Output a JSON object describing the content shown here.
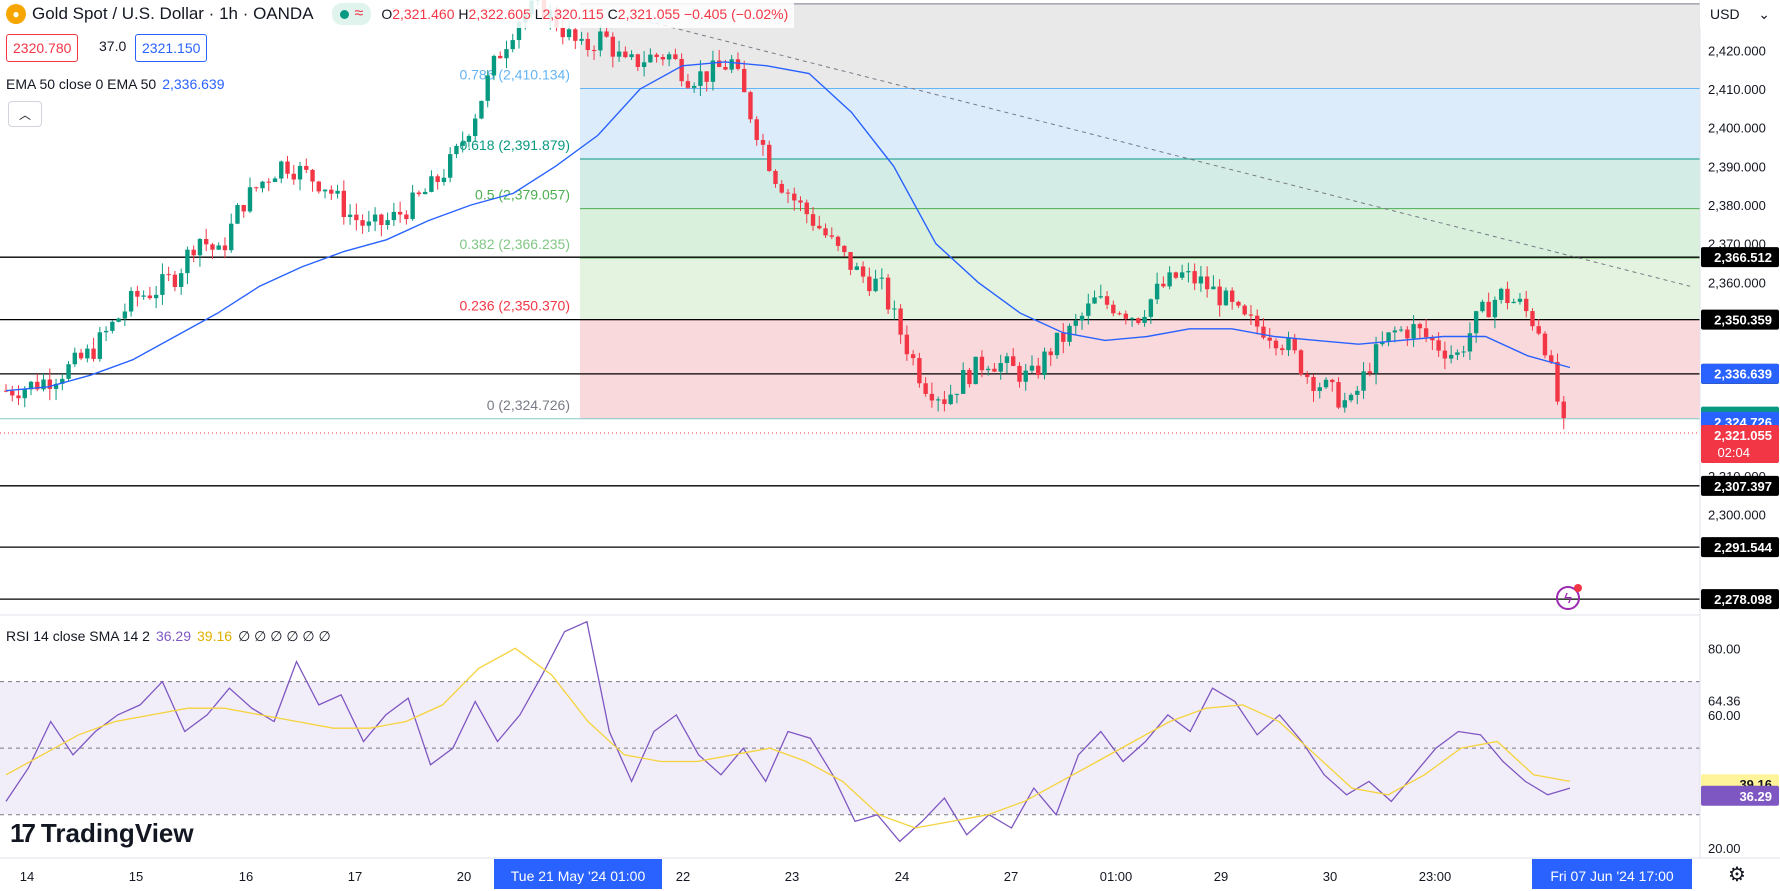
{
  "header": {
    "title": "Gold Spot / U.S. Dollar · 1h · OANDA",
    "ohlc": [
      {
        "k": "O",
        "v": "2,321.460"
      },
      {
        "k": "H",
        "v": "2,322.605"
      },
      {
        "k": "L",
        "v": "2,320.115"
      },
      {
        "k": "C",
        "v": "2,321.055"
      }
    ],
    "change": "−0.405 (−0.02%)",
    "sell_price": "2320.780",
    "spread": "37.0",
    "buy_price": "2321.150",
    "currency": "USD"
  },
  "ema": {
    "label": "EMA 50 close 0 EMA 50",
    "value": "2,336.639"
  },
  "rsi": {
    "label": "RSI 14 close SMA 14 2",
    "value": "36.29",
    "sma_value": "39.16",
    "extras": "∅ ∅ ∅ ∅ ∅ ∅"
  },
  "brand": {
    "name": "TradingView"
  },
  "colors": {
    "up": "#089981",
    "down": "#f23645",
    "ema": "#2962ff",
    "rsi": "#7e57c2",
    "rsi_sma": "#f5d33c",
    "black_label": "#000000"
  },
  "chart_data": [
    {
      "type": "candlestick",
      "title": "Gold Spot / U.S. Dollar · 1h · OANDA",
      "ylim": [
        2274,
        2433
      ],
      "y_ticks": [
        "2,300.000",
        "2,310.000",
        "2,360.000",
        "2,370.000",
        "2,380.000",
        "2,390.000",
        "2,400.000",
        "2,410.000",
        "2,420.000"
      ],
      "x_ticks": [
        "14",
        "15",
        "16",
        "17",
        "20",
        "22",
        "23",
        "24",
        "27",
        "01:00",
        "29",
        "30",
        "23:00"
      ],
      "x_highlight_labels": [
        "Tue 21 May '24   01:00",
        "Fri 07 Jun '24   17:00"
      ],
      "horizontal_levels": [
        "2,366.512",
        "2,350.359",
        "2,336.332",
        "2,307.397",
        "2,291.544",
        "2,278.098"
      ],
      "price_labels": [
        {
          "text": "2,336.639",
          "color": "#2962ff"
        },
        {
          "text": "2,324.785",
          "color": "#089981"
        },
        {
          "text": "2,324.726",
          "color": "#2962ff"
        },
        {
          "text": "2,321.055",
          "color": "#f23645"
        }
      ],
      "countdown": "02:04",
      "fibonacci": [
        {
          "level": "0.786 (2,410.134)",
          "value": 2410.134
        },
        {
          "level": "0.618 (2,391.879)",
          "value": 2391.879
        },
        {
          "level": "0.5 (2,379.057)",
          "value": 2379.057
        },
        {
          "level": "0.382 (2,366.235)",
          "value": 2366.235
        },
        {
          "level": "0.236 (2,350.370)",
          "value": 2350.37
        },
        {
          "level": "0 (2,324.726)",
          "value": 2324.726
        }
      ],
      "price_path": [
        2332,
        2333,
        2335,
        2338,
        2342,
        2349,
        2356,
        2358,
        2362,
        2372,
        2367,
        2380,
        2386,
        2391,
        2388,
        2385,
        2378,
        2374,
        2376,
        2380,
        2385,
        2392,
        2404,
        2418,
        2428,
        2432,
        2426,
        2420,
        2424,
        2416,
        2418,
        2419,
        2413,
        2414,
        2417,
        2402,
        2388,
        2381,
        2375,
        2368,
        2362,
        2359,
        2346,
        2334,
        2330,
        2336,
        2340,
        2338,
        2335,
        2343,
        2348,
        2355,
        2354,
        2351,
        2358,
        2362,
        2360,
        2356,
        2350,
        2348,
        2344,
        2336,
        2332,
        2328,
        2340,
        2347,
        2348,
        2344,
        2341,
        2351,
        2357,
        2354,
        2347,
        2322
      ],
      "ema_path": [
        2332,
        2333,
        2336,
        2340,
        2346,
        2352,
        2359,
        2364,
        2368,
        2371,
        2376,
        2380,
        2383,
        2390,
        2398,
        2410,
        2416,
        2417,
        2416,
        2414,
        2404,
        2390,
        2370,
        2360,
        2352,
        2347,
        2345,
        2346,
        2348,
        2348,
        2346,
        2345,
        2344,
        2345,
        2346,
        2346,
        2341,
        2338
      ],
      "series": [
        {
          "name": "EMA 50",
          "values": [
            2332,
            2416,
            2338
          ]
        }
      ]
    },
    {
      "type": "line",
      "title": "RSI 14 close SMA 14 2",
      "ylim": [
        17,
        90
      ],
      "y_ticks": [
        "20.00",
        "60.00",
        "80.00"
      ],
      "band_labels": [
        "64.36",
        "34.46"
      ],
      "rsi_path": [
        34,
        44,
        58,
        48,
        55,
        60,
        63,
        70,
        55,
        60,
        68,
        62,
        58,
        76,
        63,
        66,
        52,
        60,
        65,
        45,
        50,
        64,
        52,
        60,
        72,
        85,
        88,
        55,
        40,
        55,
        60,
        48,
        42,
        50,
        40,
        55,
        53,
        42,
        28,
        30,
        22,
        28,
        35,
        24,
        30,
        26,
        38,
        30,
        48,
        55,
        46,
        52,
        60,
        55,
        68,
        64,
        54,
        60,
        52,
        42,
        36,
        40,
        34,
        42,
        50,
        55,
        54,
        46,
        40,
        36,
        38
      ],
      "sma_path": [
        42,
        48,
        54,
        58,
        60,
        62,
        62,
        60,
        58,
        56,
        56,
        58,
        63,
        74,
        80,
        72,
        58,
        48,
        46,
        46,
        48,
        50,
        46,
        40,
        30,
        26,
        28,
        30,
        34,
        40,
        46,
        52,
        58,
        62,
        63,
        58,
        48,
        38,
        36,
        42,
        50,
        52,
        42,
        40
      ]
    }
  ]
}
